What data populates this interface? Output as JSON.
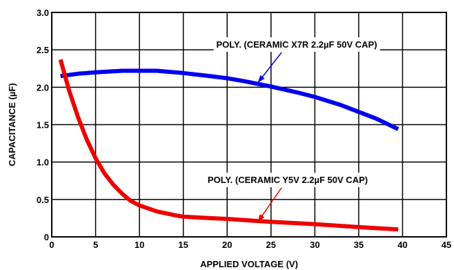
{
  "chart_data": {
    "type": "line",
    "title": "",
    "xlabel": "APPLIED VOLTAGE (V)",
    "ylabel": "CAPACITANCE (µF)",
    "xlim": [
      0,
      45
    ],
    "ylim": [
      0,
      3.0
    ],
    "xticks": [
      0,
      5,
      10,
      15,
      20,
      25,
      30,
      35,
      40,
      45
    ],
    "yticks": [
      0,
      0.5,
      1.0,
      1.5,
      2.0,
      2.5,
      3.0
    ],
    "xtick_labels": [
      "0",
      "5",
      "10",
      "15",
      "20",
      "25",
      "30",
      "35",
      "40",
      "45"
    ],
    "ytick_labels": [
      "0",
      "0.5",
      "1.0",
      "1.5",
      "2.0",
      "2.5",
      "3.0"
    ],
    "grid": true,
    "legend": "none",
    "series": [
      {
        "name": "POLY. (CERAMIC X7R 2.2µF 50V CAP)",
        "color": "#0000ee",
        "x": [
          1,
          3,
          5,
          8,
          10,
          12,
          15,
          18,
          20,
          22,
          25,
          28,
          30,
          33,
          35,
          37,
          39.5
        ],
        "y": [
          2.15,
          2.18,
          2.2,
          2.22,
          2.22,
          2.22,
          2.19,
          2.15,
          2.12,
          2.08,
          2.01,
          1.93,
          1.87,
          1.76,
          1.67,
          1.58,
          1.44
        ]
      },
      {
        "name": "POLY. (CERAMIC Y5V 2.2µF 50V CAP)",
        "color": "#ee0000",
        "x": [
          1,
          2,
          3,
          4,
          5,
          6,
          7,
          8,
          9,
          10,
          12,
          14,
          15,
          18,
          20,
          25,
          30,
          35,
          39.5
        ],
        "y": [
          2.37,
          1.95,
          1.6,
          1.3,
          1.05,
          0.85,
          0.7,
          0.58,
          0.48,
          0.42,
          0.34,
          0.29,
          0.27,
          0.25,
          0.24,
          0.2,
          0.17,
          0.13,
          0.1
        ]
      }
    ],
    "annotations": [
      {
        "text": "POLY. (CERAMIC X7R 2.2µF 50V CAP)",
        "series": 0,
        "arrow_to": [
          23.5,
          2.06
        ]
      },
      {
        "text": "POLY. (CERAMIC Y5V 2.2µF 50V CAP)",
        "series": 1,
        "arrow_to": [
          23.5,
          0.2
        ]
      }
    ]
  }
}
